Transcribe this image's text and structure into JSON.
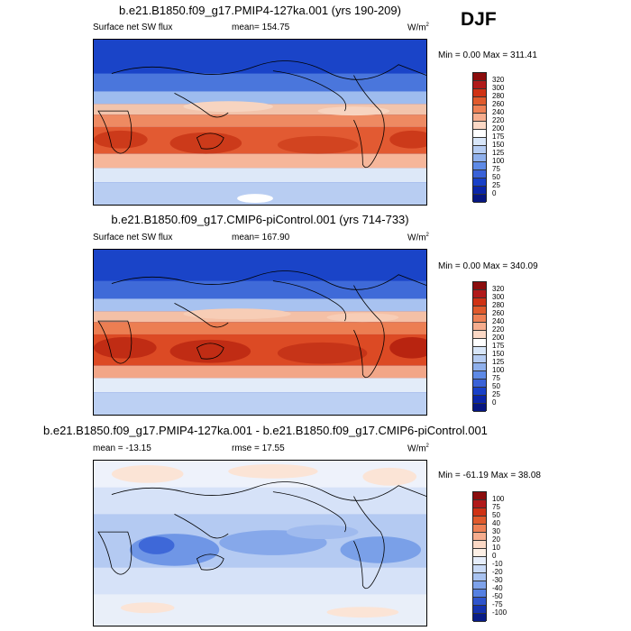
{
  "season": "DJF",
  "panels": [
    {
      "title": "b.e21.B1850.f09_g17.PMIP4-127ka.001 (yrs 190-209)",
      "left_label": "Surface net SW flux",
      "center_label": "mean= 154.75",
      "units": "W/m",
      "units_exp": "2",
      "minmax": "Min =   0.00 Max = 311.41",
      "colorbar_ticks": [
        "320",
        "300",
        "280",
        "260",
        "240",
        "220",
        "200",
        "175",
        "150",
        "125",
        "100",
        "75",
        "50",
        "25",
        "0"
      ],
      "colorbar_colors": [
        "#8b0d0d",
        "#b01a1a",
        "#cf3214",
        "#e05a2c",
        "#ee8055",
        "#f6ad8e",
        "#fbd8c5",
        "#ffffff",
        "#d8e6f8",
        "#b5ccf2",
        "#8fb0ec",
        "#5e8ae6",
        "#3a62d8",
        "#1840c8",
        "#0a25a8",
        "#061680"
      ]
    },
    {
      "title": "b.e21.B1850.f09_g17.CMIP6-piControl.001 (yrs 714-733)",
      "left_label": "Surface net SW flux",
      "center_label": "mean= 167.90",
      "units": "W/m",
      "units_exp": "2",
      "minmax": "Min =   0.00 Max = 340.09",
      "colorbar_ticks": [
        "320",
        "300",
        "280",
        "260",
        "240",
        "220",
        "200",
        "175",
        "150",
        "125",
        "100",
        "75",
        "50",
        "25",
        "0"
      ],
      "colorbar_colors": [
        "#8b0d0d",
        "#b01a1a",
        "#cf3214",
        "#e05a2c",
        "#ee8055",
        "#f6ad8e",
        "#fbd8c5",
        "#ffffff",
        "#d8e6f8",
        "#b5ccf2",
        "#8fb0ec",
        "#5e8ae6",
        "#3a62d8",
        "#1840c8",
        "#0a25a8",
        "#061680"
      ]
    },
    {
      "title": "b.e21.B1850.f09_g17.PMIP4-127ka.001 - b.e21.B1850.f09_g17.CMIP6-piControl.001",
      "left_label": "mean = -13.15",
      "center_label": "rmse =  17.55",
      "units": "W/m",
      "units_exp": "2",
      "minmax": "Min = -61.19 Max =  38.08",
      "colorbar_ticks": [
        "100",
        "75",
        "50",
        "40",
        "30",
        "20",
        "10",
        "0",
        "-10",
        "-20",
        "-30",
        "-40",
        "-50",
        "-75",
        "-100"
      ],
      "colorbar_colors": [
        "#8b0d0d",
        "#b01a1a",
        "#cf3214",
        "#e05a2c",
        "#ee8055",
        "#f6ad8e",
        "#fbd8c5",
        "#fdf0e6",
        "#e6eefb",
        "#c9daf6",
        "#a8c2f0",
        "#7ea2ea",
        "#5580e2",
        "#2e54cc",
        "#1432ae",
        "#081c86"
      ]
    }
  ]
}
